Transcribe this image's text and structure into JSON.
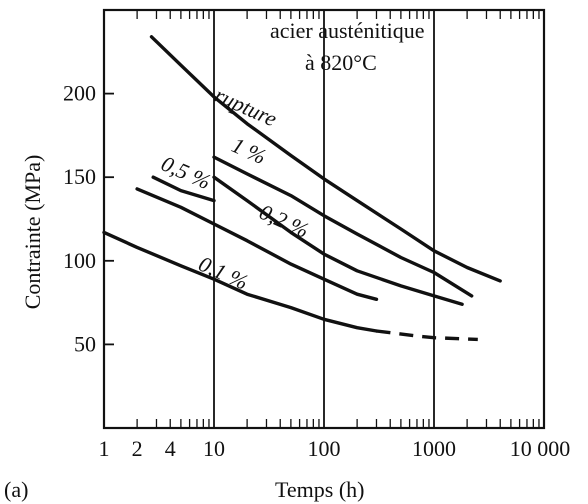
{
  "chart_data": {
    "type": "line",
    "title": "",
    "xlabel": "Temps (h)",
    "ylabel": "Contrainte (MPa)",
    "xscale": "log",
    "xlim": [
      1,
      10000
    ],
    "ylim": [
      0,
      250
    ],
    "grid": "vertical at decades",
    "panel_label": "(a)",
    "annotation": [
      "acier austénitique",
      "à 820°C"
    ],
    "x_ticks": [
      {
        "value": 1,
        "label": "1"
      },
      {
        "value": 2,
        "label": "2"
      },
      {
        "value": 4,
        "label": "4"
      },
      {
        "value": 10,
        "label": "10"
      },
      {
        "value": 100,
        "label": "100"
      },
      {
        "value": 1000,
        "label": "1000"
      },
      {
        "value": 10000,
        "label": "10 000"
      }
    ],
    "y_ticks": [
      {
        "value": 50,
        "label": "50"
      },
      {
        "value": 100,
        "label": "100"
      },
      {
        "value": 150,
        "label": "150"
      },
      {
        "value": 200,
        "label": "200"
      }
    ],
    "series": [
      {
        "name": "rupture",
        "label_angle": 24,
        "label_at": [
          9.8,
          196
        ],
        "solid": [
          [
            2.7,
            234
          ],
          [
            5,
            217
          ],
          [
            10,
            198
          ],
          [
            20,
            182
          ],
          [
            50,
            163
          ],
          [
            100,
            149
          ],
          [
            200,
            136
          ],
          [
            500,
            119
          ],
          [
            1000,
            106
          ],
          [
            2000,
            96
          ],
          [
            4000,
            88
          ]
        ],
        "dashed": []
      },
      {
        "name": "1 %",
        "label_angle": 24,
        "label_at": [
          14,
          166
        ],
        "solid": [
          [
            10,
            162
          ],
          [
            20,
            152
          ],
          [
            50,
            139
          ],
          [
            100,
            127
          ],
          [
            200,
            116
          ],
          [
            500,
            102
          ],
          [
            1000,
            93
          ],
          [
            2200,
            79
          ]
        ],
        "dashed": []
      },
      {
        "name": "0,5 %",
        "label_angle": 24,
        "label_at": [
          3.2,
          155
        ],
        "solid": [
          [
            2.8,
            150
          ],
          [
            5,
            142
          ],
          [
            10,
            136
          ]
        ],
        "dashed": []
      },
      {
        "name": "0,2 %",
        "label_angle": 24,
        "label_at": [
          25,
          126
        ],
        "solid": [
          [
            10,
            150
          ],
          [
            20,
            136
          ],
          [
            50,
            117
          ],
          [
            100,
            104
          ],
          [
            200,
            94
          ],
          [
            500,
            85
          ],
          [
            1000,
            79
          ],
          [
            1800,
            74
          ]
        ],
        "dashed": []
      },
      {
        "name": "0,1 %",
        "label_angle": 24,
        "label_at": [
          7,
          95
        ],
        "solid": [
          [
            1,
            117
          ],
          [
            2,
            108
          ],
          [
            5,
            97
          ],
          [
            10,
            89
          ],
          [
            20,
            80
          ],
          [
            50,
            72
          ],
          [
            100,
            65
          ],
          [
            200,
            60
          ],
          [
            300,
            58
          ]
        ],
        "dashed": [
          [
            300,
            58
          ],
          [
            700,
            55
          ],
          [
            1000,
            54
          ],
          [
            2500,
            53
          ]
        ]
      },
      {
        "name": "",
        "label_angle": 0,
        "label_at": null,
        "solid": [
          [
            2,
            143
          ],
          [
            5,
            132
          ],
          [
            10,
            122
          ],
          [
            20,
            112
          ],
          [
            50,
            98
          ],
          [
            100,
            89
          ],
          [
            200,
            80
          ],
          [
            300,
            77
          ]
        ],
        "dashed": []
      }
    ]
  }
}
